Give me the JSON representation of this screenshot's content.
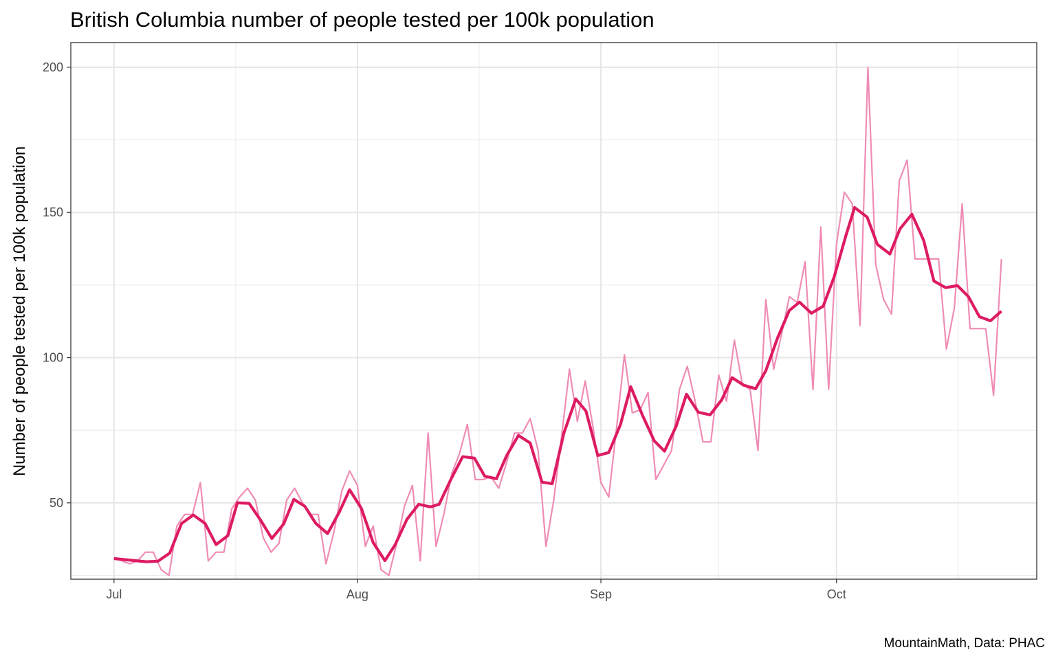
{
  "chart_data": {
    "type": "line",
    "title": "British Columbia number of people tested per 100k population",
    "y_label": "Number of people tested per 100k population",
    "caption": "MountainMath, Data: PHAC",
    "xlim": [
      -5.5,
      117.5
    ],
    "ylim": [
      23.7,
      208.5
    ],
    "xticks": [
      {
        "value": 0,
        "label": "Jul"
      },
      {
        "value": 31,
        "label": "Aug"
      },
      {
        "value": 62,
        "label": "Sep"
      },
      {
        "value": 92,
        "label": "Oct"
      }
    ],
    "yticks": [
      50,
      100,
      150,
      200
    ],
    "x_minor_grid": [
      15.5,
      46.5,
      77,
      107.5
    ],
    "y_minor_grid": [
      25,
      75,
      125,
      175
    ],
    "grid": true,
    "series": [
      {
        "color": "#ef8cb5",
        "x": [
          0,
          1,
          2,
          3,
          4,
          5,
          6,
          7,
          8,
          9,
          10,
          11,
          12,
          13,
          14,
          15,
          16,
          17,
          18,
          19,
          20,
          21,
          22,
          23,
          24,
          25,
          26,
          27,
          28,
          29,
          30,
          31,
          32,
          33,
          34,
          35,
          36,
          37,
          38,
          39,
          40,
          41,
          42,
          43,
          44,
          45,
          46,
          47,
          48,
          49,
          50,
          51,
          52,
          53,
          54,
          55,
          56,
          57,
          58,
          59,
          60,
          61,
          62,
          63,
          64,
          65,
          66,
          67,
          68,
          69,
          70,
          71,
          72,
          73,
          74,
          75,
          76,
          77,
          78,
          79,
          80,
          81,
          82,
          83,
          84,
          85,
          86,
          87,
          88,
          89,
          90,
          91,
          92,
          93,
          94,
          95,
          96,
          97,
          98,
          99,
          100,
          101,
          102,
          103,
          104,
          105,
          106,
          107,
          108,
          109,
          110,
          111,
          112,
          113
        ],
        "values": [
          31,
          30,
          29,
          30,
          33,
          33,
          27,
          25,
          42,
          46,
          46,
          57,
          30,
          33,
          33,
          48,
          52,
          55,
          51,
          38,
          33,
          36,
          51,
          55,
          50,
          46,
          46,
          29,
          40,
          54,
          61,
          56,
          35,
          42,
          27,
          25,
          36,
          49,
          56,
          30,
          74,
          35,
          46,
          60,
          67,
          77,
          58,
          58,
          59,
          55,
          64,
          74,
          74,
          79,
          68,
          35,
          51,
          73,
          96,
          78,
          92,
          76,
          57,
          52,
          76,
          101,
          81,
          82,
          88,
          58,
          63,
          68,
          89,
          97,
          85,
          71,
          71,
          94,
          85,
          106,
          91,
          89,
          68,
          120,
          96,
          108,
          121,
          119,
          133,
          89,
          145,
          89,
          139,
          157,
          153,
          111,
          200,
          132,
          120,
          115,
          161,
          168,
          134,
          134,
          134,
          134,
          103,
          117,
          153,
          110,
          110,
          110,
          87,
          134
        ]
      },
      {
        "color": "#dd1b63",
        "x": [
          0,
          4.1,
          5.6,
          7.1,
          8.6,
          10.1,
          11.6,
          13.0,
          14.5,
          15.7,
          17.2,
          18.7,
          20.1,
          21.6,
          22.9,
          24.3,
          25.7,
          27.2,
          28.7,
          30.0,
          31.5,
          33.0,
          34.5,
          35.8,
          37.3,
          38.8,
          40.3,
          41.4,
          42.9,
          44.4,
          45.9,
          47.2,
          48.7,
          50.0,
          51.5,
          53.0,
          54.5,
          55.8,
          57.3,
          58.8,
          60.1,
          61.6,
          63.0,
          64.5,
          65.8,
          67.3,
          68.8,
          70.1,
          71.6,
          72.9,
          74.4,
          75.9,
          77.4,
          78.7,
          80.2,
          81.7,
          83.0,
          84.5,
          86.0,
          87.3,
          88.8,
          90.3,
          91.7,
          93.2,
          94.3,
          95.9,
          97.2,
          98.8,
          100.1,
          101.6,
          103.1,
          104.4,
          105.9,
          107.4,
          108.8,
          110.2,
          111.6,
          113.0
        ],
        "values": [
          30.8,
          29.7,
          29.9,
          32.7,
          42.9,
          45.8,
          42.9,
          35.6,
          38.7,
          50.0,
          49.8,
          43.9,
          37.7,
          42.7,
          51.2,
          48.8,
          42.9,
          39.4,
          46.9,
          54.5,
          48.1,
          36.3,
          30.1,
          35.6,
          44.3,
          49.5,
          48.6,
          49.5,
          58.1,
          65.9,
          65.4,
          59.2,
          58.3,
          66.3,
          73.2,
          70.6,
          57.1,
          56.6,
          74.1,
          85.8,
          81.6,
          66.3,
          67.3,
          77.0,
          90.0,
          80.1,
          71.3,
          67.8,
          76.5,
          87.4,
          81.2,
          80.3,
          85.5,
          93.1,
          90.5,
          89.3,
          95.5,
          106.8,
          116.3,
          119.1,
          115.3,
          117.7,
          127.8,
          142.0,
          151.7,
          148.4,
          139.0,
          135.7,
          144.4,
          149.4,
          140.4,
          126.4,
          124.1,
          124.8,
          121.0,
          114.1,
          112.7,
          116.0
        ]
      }
    ]
  }
}
